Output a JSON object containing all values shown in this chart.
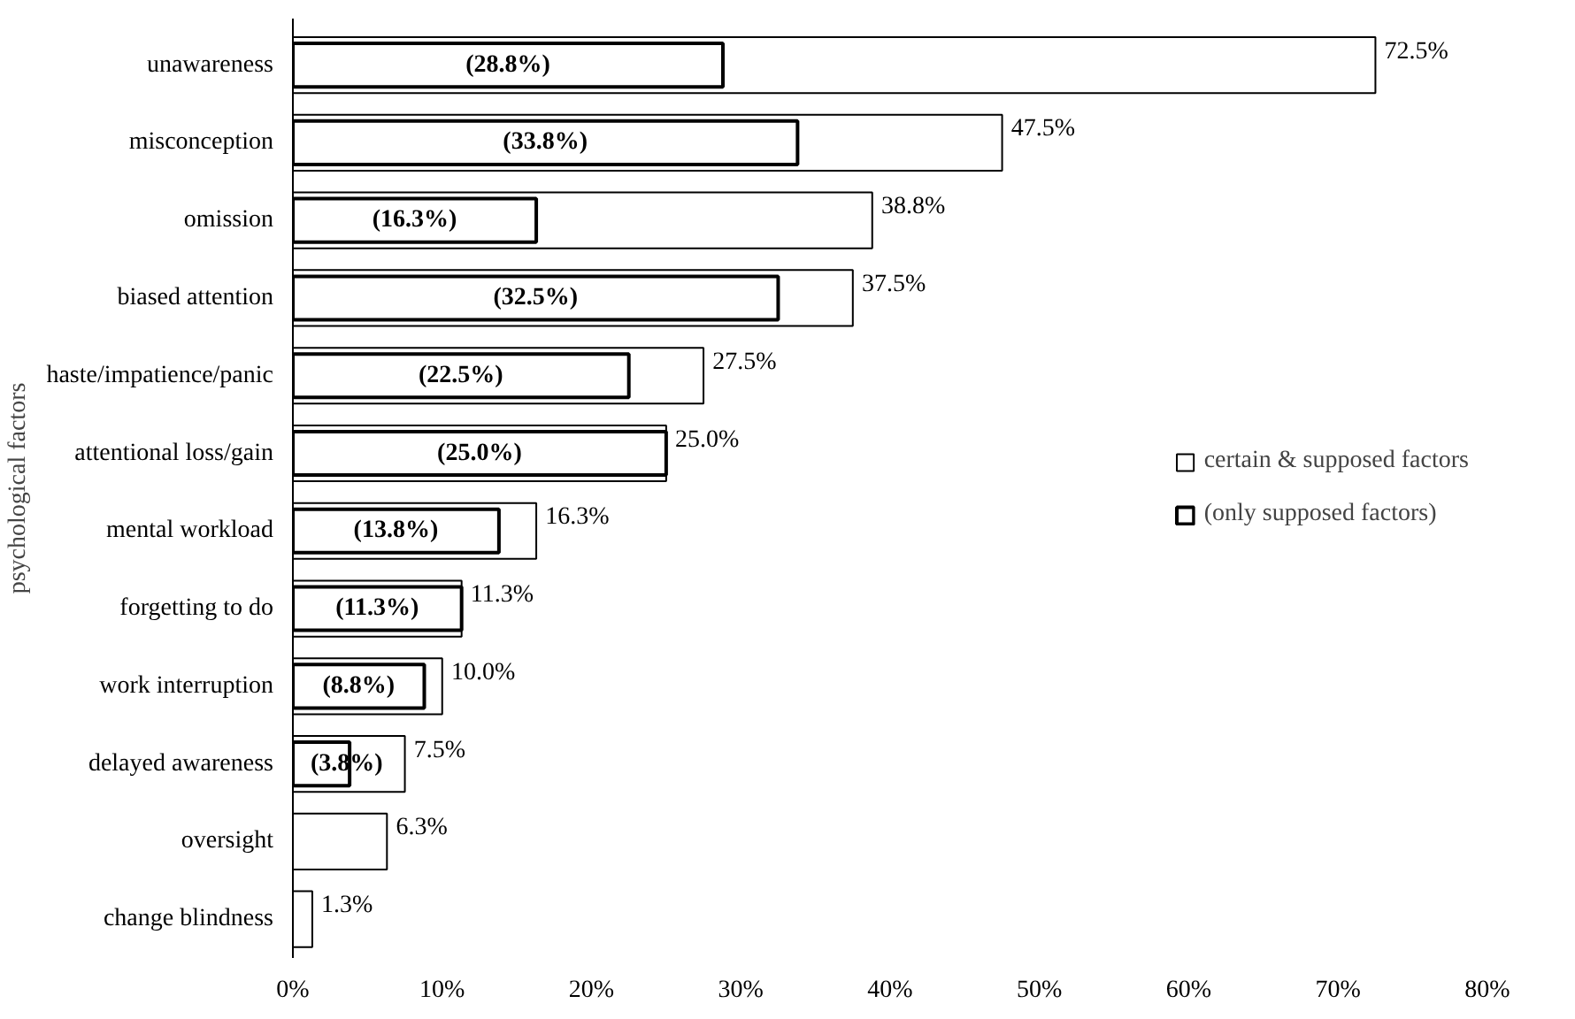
{
  "chart_data": {
    "type": "bar",
    "orientation": "horizontal",
    "ylabel": "psychological factors",
    "categories": [
      "unawareness",
      "misconception",
      "omission",
      "biased attention",
      "haste/impatience/panic",
      "attentional loss/gain",
      "mental workload",
      "forgetting to do",
      "work interruption",
      "delayed awareness",
      "oversight",
      "change blindness"
    ],
    "series": [
      {
        "name": "certain & supposed factors",
        "color": "#ffffff",
        "values": [
          72.5,
          47.5,
          38.8,
          37.5,
          27.5,
          25.0,
          16.3,
          11.3,
          10.0,
          7.5,
          6.3,
          1.3
        ],
        "value_labels": [
          "72.5%",
          "47.5%",
          "38.8%",
          "37.5%",
          "27.5%",
          "25.0%",
          "16.3%",
          "11.3%",
          "10.0%",
          "7.5%",
          "6.3%",
          "1.3%"
        ]
      },
      {
        "name": "(only supposed factors)",
        "color": "#ffffff",
        "values": [
          28.8,
          33.8,
          16.3,
          32.5,
          22.5,
          25.0,
          13.8,
          11.3,
          8.8,
          3.8,
          null,
          null
        ],
        "value_labels": [
          "(28.8%)",
          "(33.8%)",
          "(16.3%)",
          "(32.5%)",
          "(22.5%)",
          "(25.0%)",
          "(13.8%)",
          "(11.3%)",
          "(8.8%)",
          "(3.8%)",
          null,
          null
        ]
      }
    ],
    "xlim": [
      0,
      80
    ],
    "xticks": [
      {
        "value": 0,
        "label": "0%"
      },
      {
        "value": 10,
        "label": "10%"
      },
      {
        "value": 20,
        "label": "20%"
      },
      {
        "value": 30,
        "label": "30%"
      },
      {
        "value": 40,
        "label": "40%"
      },
      {
        "value": 50,
        "label": "50%"
      },
      {
        "value": 60,
        "label": "60%"
      },
      {
        "value": 70,
        "label": "70%"
      },
      {
        "value": 80,
        "label": "80%"
      }
    ],
    "grid": false,
    "legend": "right"
  }
}
